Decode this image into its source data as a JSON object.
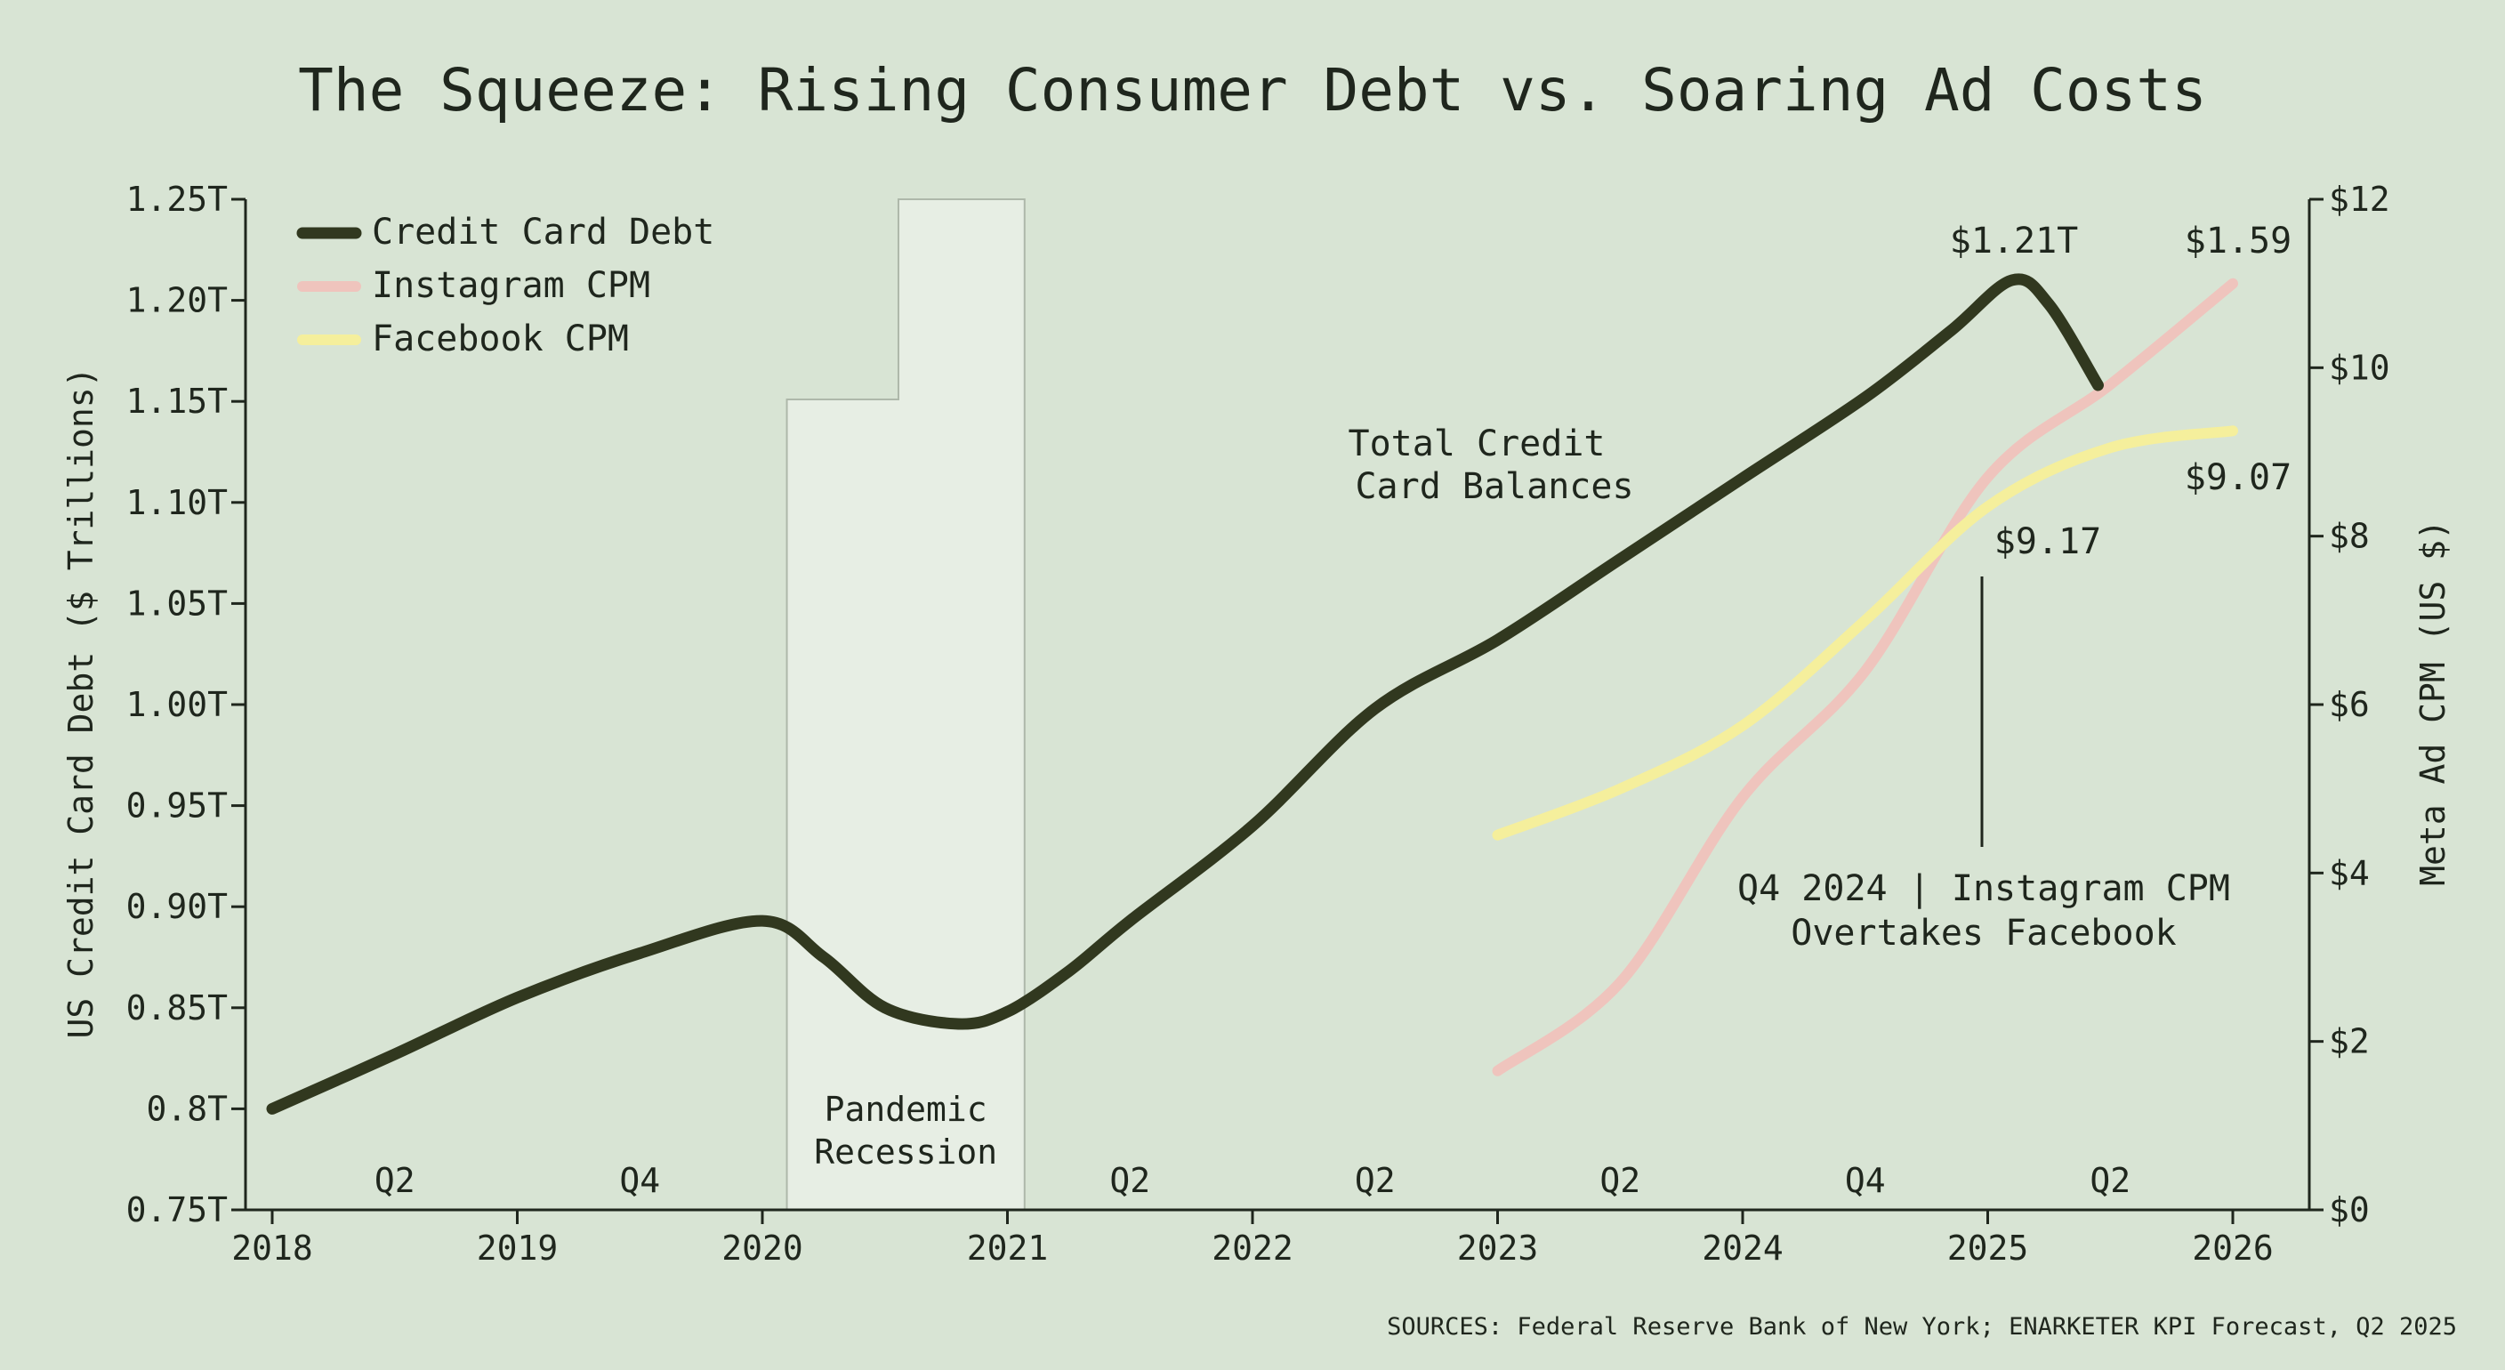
{
  "chart_data": {
    "type": "line",
    "title": "The Squeeze: Rising Consumer Debt vs. Soaring Ad Costs",
    "ylabel_left": "US Credit Card Debt ($ Trillions)",
    "ylabel_right": "Meta Ad CPM (US $)",
    "xlim": [
      2018,
      2026
    ],
    "ylim_left": [
      0.75,
      1.25
    ],
    "ylim_right": [
      0,
      12
    ],
    "y_left_ticks": [
      {
        "v": 1.25,
        "label": "1.25T"
      },
      {
        "v": 1.2,
        "label": "1.20T"
      },
      {
        "v": 1.15,
        "label": "1.15T"
      },
      {
        "v": 1.1,
        "label": "1.10T"
      },
      {
        "v": 1.05,
        "label": "1.05T"
      },
      {
        "v": 1.0,
        "label": "1.00T"
      },
      {
        "v": 0.95,
        "label": "0.95T"
      },
      {
        "v": 0.9,
        "label": "0.90T"
      },
      {
        "v": 0.85,
        "label": "0.85T"
      },
      {
        "v": 0.8,
        "label": "0.8T"
      },
      {
        "v": 0.75,
        "label": "0.75T"
      }
    ],
    "y_right_ticks": [
      {
        "v": 12,
        "label": "$12"
      },
      {
        "v": 10,
        "label": "$10"
      },
      {
        "v": 8,
        "label": "$8"
      },
      {
        "v": 6,
        "label": "$6"
      },
      {
        "v": 4,
        "label": "$4"
      },
      {
        "v": 2,
        "label": "$2"
      },
      {
        "v": 0,
        "label": "$0"
      }
    ],
    "x_ticks": [
      {
        "v": 2018,
        "label": "2018"
      },
      {
        "v": 2019,
        "label": "2019"
      },
      {
        "v": 2020,
        "label": "2020"
      },
      {
        "v": 2021,
        "label": "2021"
      },
      {
        "v": 2022,
        "label": "2022"
      },
      {
        "v": 2023,
        "label": "2023"
      },
      {
        "v": 2024,
        "label": "2024"
      },
      {
        "v": 2025,
        "label": "2025"
      },
      {
        "v": 2026,
        "label": "2026"
      }
    ],
    "quarter_labels": [
      {
        "x": 2018.5,
        "label": "Q2"
      },
      {
        "x": 2019.5,
        "label": "Q4"
      },
      {
        "x": 2021.5,
        "label": "Q2"
      },
      {
        "x": 2022.5,
        "label": "Q2"
      },
      {
        "x": 2023.5,
        "label": "Q2"
      },
      {
        "x": 2024.5,
        "label": "Q4"
      },
      {
        "x": 2025.5,
        "label": "Q2"
      }
    ],
    "shaded_region": {
      "x": [
        2020.1,
        2021.07
      ],
      "label_lines": [
        "Pandemic",
        "Recession"
      ]
    },
    "series": [
      {
        "name": "Credit Card Debt",
        "axis": "left",
        "color": "#31381f",
        "x": [
          2018.0,
          2018.5,
          2019.0,
          2019.5,
          2020.0,
          2020.25,
          2020.5,
          2020.8,
          2021.0,
          2021.25,
          2021.5,
          2022.0,
          2022.5,
          2023.0,
          2023.5,
          2024.0,
          2024.5,
          2024.85,
          2025.1,
          2025.25,
          2025.45
        ],
        "values": [
          0.8,
          0.827,
          0.855,
          0.877,
          0.893,
          0.875,
          0.85,
          0.842,
          0.848,
          0.868,
          0.893,
          0.94,
          0.998,
          1.032,
          1.072,
          1.112,
          1.152,
          1.185,
          1.21,
          1.198,
          1.158
        ]
      },
      {
        "name": "Instagram CPM",
        "axis": "right",
        "color": "#efc4bd",
        "x": [
          2023.0,
          2023.5,
          2024.0,
          2024.5,
          2025.0,
          2025.5,
          2026.0
        ],
        "values": [
          1.65,
          2.7,
          4.9,
          6.4,
          8.7,
          9.8,
          11.0
        ]
      },
      {
        "name": "Facebook CPM",
        "axis": "right",
        "color": "#f5ef9c",
        "x": [
          2023.0,
          2023.5,
          2024.0,
          2024.5,
          2025.0,
          2025.5,
          2026.0
        ],
        "values": [
          4.45,
          5.0,
          5.75,
          7.0,
          8.35,
          9.05,
          9.25
        ]
      }
    ],
    "annotations": [
      {
        "lines": [
          "$1.21T"
        ]
      },
      {
        "lines": [
          "$1.59"
        ]
      },
      {
        "lines": [
          "$9.07"
        ]
      },
      {
        "lines": [
          "$9.17"
        ]
      },
      {
        "lines": [
          "Total Credit",
          "Card Balances"
        ]
      },
      {
        "lines": [
          "Q4 2024 | Instagram CPM",
          "Overtakes Facebook"
        ]
      }
    ],
    "legend_position": "top-left",
    "grid": false,
    "source": "SOURCES: Federal Reserve Bank of New York; ENARKETER KPI Forecast, Q2 2025"
  }
}
